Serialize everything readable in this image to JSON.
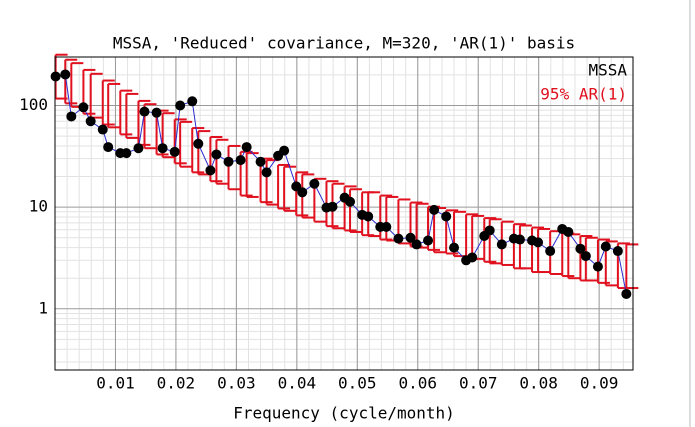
{
  "chart_data": {
    "type": "errorbar",
    "title": "MSSA, 'Reduced' covariance, M=320, 'AR(1)' basis",
    "xlabel": "Frequency (cycle/month)",
    "x": [
      0.0001,
      0.0017,
      0.0027,
      0.0047,
      0.0059,
      0.0079,
      0.0088,
      0.0108,
      0.0118,
      0.0138,
      0.0148,
      0.0168,
      0.0178,
      0.0198,
      0.0207,
      0.0227,
      0.0237,
      0.0257,
      0.0267,
      0.0287,
      0.0307,
      0.0317,
      0.034,
      0.035,
      0.0369,
      0.0379,
      0.0399,
      0.0409,
      0.0429,
      0.0449,
      0.0459,
      0.0479,
      0.0488,
      0.0508,
      0.0518,
      0.0538,
      0.0548,
      0.0568,
      0.0588,
      0.0598,
      0.0617,
      0.0627,
      0.0647,
      0.066,
      0.068,
      0.069,
      0.071,
      0.0719,
      0.0739,
      0.0759,
      0.0769,
      0.0789,
      0.0799,
      0.0819,
      0.0839,
      0.0849,
      0.0869,
      0.0878,
      0.0898,
      0.0911,
      0.0931,
      0.0945
    ],
    "series": [
      {
        "name": "MSSA",
        "color": "#000000",
        "line_color": "#2a2ad0",
        "values": [
          193,
          202,
          78,
          96,
          70,
          58,
          39,
          34,
          34,
          38,
          87,
          85,
          38,
          35,
          100,
          110,
          42,
          23,
          33,
          28,
          29,
          39,
          28,
          22,
          32,
          36,
          16,
          14,
          17,
          9.9,
          10.1,
          12.4,
          11.3,
          8.4,
          8.1,
          6.4,
          6.4,
          4.9,
          5.0,
          4.3,
          4.7,
          9.4,
          8.1,
          4.0,
          3.0,
          3.2,
          5.2,
          5.9,
          4.3,
          4.9,
          4.8,
          4.7,
          4.5,
          3.7,
          6.1,
          5.7,
          3.9,
          3.3,
          2.6,
          4.1,
          3.7,
          1.4
        ]
      },
      {
        "name": "95% AR(1)",
        "color": "#e0101e",
        "upper": [
          316,
          282,
          261,
          224,
          205,
          176,
          163,
          140,
          130,
          111,
          103,
          89,
          84,
          73,
          69,
          60,
          56,
          49,
          46,
          40,
          35,
          34,
          30,
          29,
          26,
          25,
          22,
          21,
          19,
          18,
          17,
          16,
          15,
          14,
          14,
          13,
          12.6,
          11.9,
          11.1,
          10.8,
          10.1,
          9.8,
          9.3,
          9.0,
          8.5,
          8.2,
          7.8,
          7.6,
          7.2,
          6.8,
          6.6,
          6.3,
          6.1,
          5.8,
          5.5,
          5.4,
          5.2,
          5.0,
          4.8,
          4.6,
          4.4,
          4.3
        ],
        "lower": [
          117,
          105,
          97,
          83,
          76,
          65,
          61,
          52,
          48,
          41,
          38,
          33,
          31,
          27,
          25,
          22,
          21,
          18,
          17,
          15,
          13,
          12.6,
          11.2,
          10.6,
          9.7,
          9.2,
          8.3,
          7.9,
          7.2,
          6.5,
          6.2,
          5.9,
          5.7,
          5.3,
          5.2,
          4.8,
          4.7,
          4.4,
          4.1,
          4.0,
          3.8,
          3.6,
          3.5,
          3.3,
          3.1,
          3.1,
          2.9,
          2.8,
          2.7,
          2.5,
          2.5,
          2.3,
          2.3,
          2.2,
          2.1,
          2.0,
          1.9,
          1.9,
          1.8,
          1.7,
          1.6,
          1.6
        ]
      }
    ],
    "xlim": [
      0,
      0.0956
    ],
    "ylim": [
      0.25,
      300
    ],
    "xticks": [
      0.01,
      0.02,
      0.03,
      0.04,
      0.05,
      0.06,
      0.07,
      0.08,
      0.09
    ],
    "yticks": [
      1,
      10,
      100
    ],
    "ylog": true,
    "grid": true,
    "minor_grid": true,
    "legend": "upper right"
  }
}
